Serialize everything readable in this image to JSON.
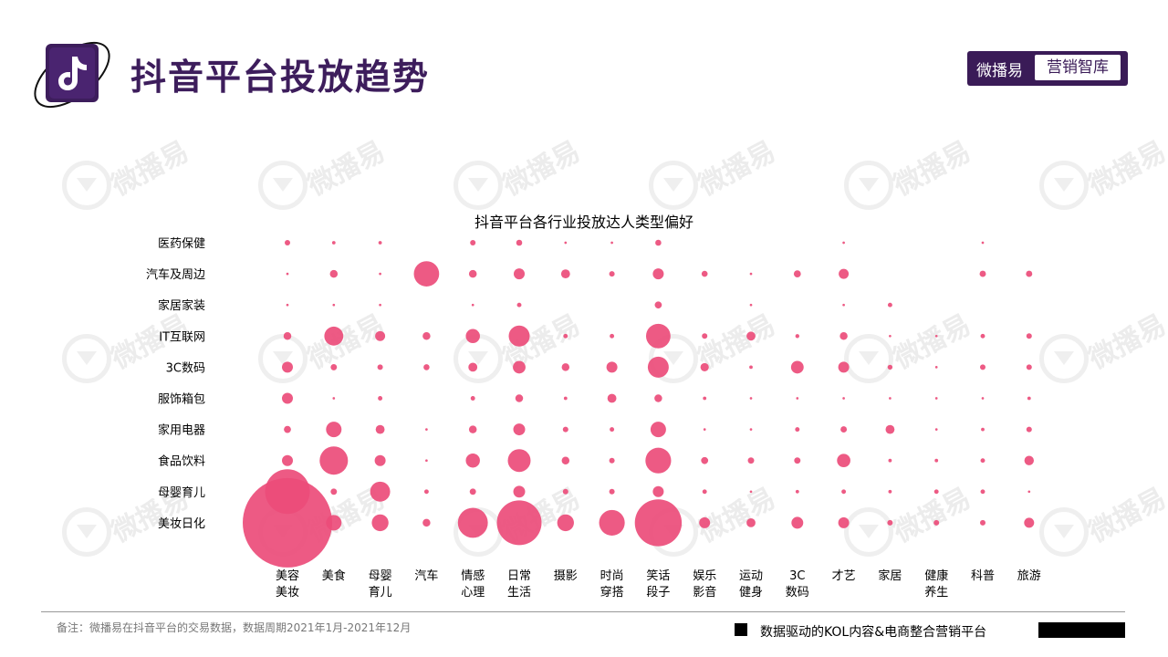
{
  "header": {
    "title": "抖音平台投放趋势",
    "brand_main": "微播易",
    "brand_box": "营销智库"
  },
  "watermark_text": "微播易",
  "colors": {
    "bubble": "#ec4c79",
    "title": "#3d1d5c",
    "brand_bg": "#3a1b57"
  },
  "chart_data": {
    "type": "bubble",
    "title": "抖音平台各行业投放达人类型偏好",
    "x_categories": [
      [
        "美容",
        "美妆"
      ],
      [
        "美食"
      ],
      [
        "母婴",
        "育儿"
      ],
      [
        "汽车"
      ],
      [
        "情感",
        "心理"
      ],
      [
        "日常",
        "生活"
      ],
      [
        "摄影"
      ],
      [
        "时尚",
        "穿搭"
      ],
      [
        "笑话",
        "段子"
      ],
      [
        "娱乐",
        "影音"
      ],
      [
        "运动",
        "健身"
      ],
      [
        "3C",
        "数码"
      ],
      [
        "才艺"
      ],
      [
        "家居"
      ],
      [
        "健康",
        "养生"
      ],
      [
        "科普"
      ],
      [
        "旅游"
      ]
    ],
    "y_categories": [
      "医药保健",
      "汽车及周边",
      "家居家装",
      "IT互联网",
      "3C数码",
      "服饰箱包",
      "家用电器",
      "食品饮料",
      "母婴育儿",
      "美妆日化"
    ],
    "values": [
      [
        1.5,
        0.6,
        0.6,
        0,
        1.5,
        1.8,
        0.3,
        0.3,
        1.8,
        0,
        0,
        0,
        0.3,
        0,
        0,
        0.3,
        0
      ],
      [
        0.3,
        3,
        0.3,
        32,
        3,
        6,
        4,
        1.5,
        6,
        1.8,
        0.3,
        2.5,
        5,
        0,
        0,
        2,
        2
      ],
      [
        0.3,
        0.3,
        0.3,
        0,
        0.3,
        1,
        0,
        0,
        2.5,
        0,
        0.3,
        0,
        0.3,
        1,
        0,
        0,
        0
      ],
      [
        3,
        18,
        5,
        3,
        10,
        22,
        1,
        1,
        30,
        1.5,
        4,
        0.8,
        3,
        0.3,
        0.3,
        1,
        1.5
      ],
      [
        6,
        2,
        1.5,
        1.8,
        4,
        8,
        3,
        6,
        22,
        3.5,
        0.6,
        8,
        6,
        1.2,
        0.3,
        1.5,
        1.5
      ],
      [
        6,
        0.3,
        1,
        0,
        1,
        3,
        0.6,
        4,
        3,
        0.6,
        0.3,
        0.3,
        0.3,
        0.3,
        0.3,
        0.3,
        0.6
      ],
      [
        2.5,
        12,
        4,
        0.3,
        3,
        7,
        1.5,
        1,
        12,
        0.3,
        0.3,
        1,
        2,
        4,
        0.3,
        0.6,
        1.5
      ],
      [
        6,
        40,
        6,
        0.3,
        10,
        26,
        3,
        1.5,
        33,
        2.5,
        2,
        2,
        9,
        0.6,
        0.6,
        1,
        4.5
      ],
      [
        100,
        2,
        20,
        1,
        2,
        7,
        1.5,
        1.5,
        6,
        1,
        0.3,
        0.6,
        1,
        0.6,
        1,
        1,
        0.3
      ],
      [
        400,
        12,
        14,
        3,
        45,
        100,
        14,
        33,
        110,
        6,
        4,
        7,
        6,
        1.5,
        1.5,
        1.5,
        5
      ]
    ]
  },
  "footer": {
    "note": "备注：微播易在抖音平台的交易数据，数据周期2021年1月-2021年12月",
    "slogan": "数据驱动的KOL内容&电商整合营销平台"
  }
}
